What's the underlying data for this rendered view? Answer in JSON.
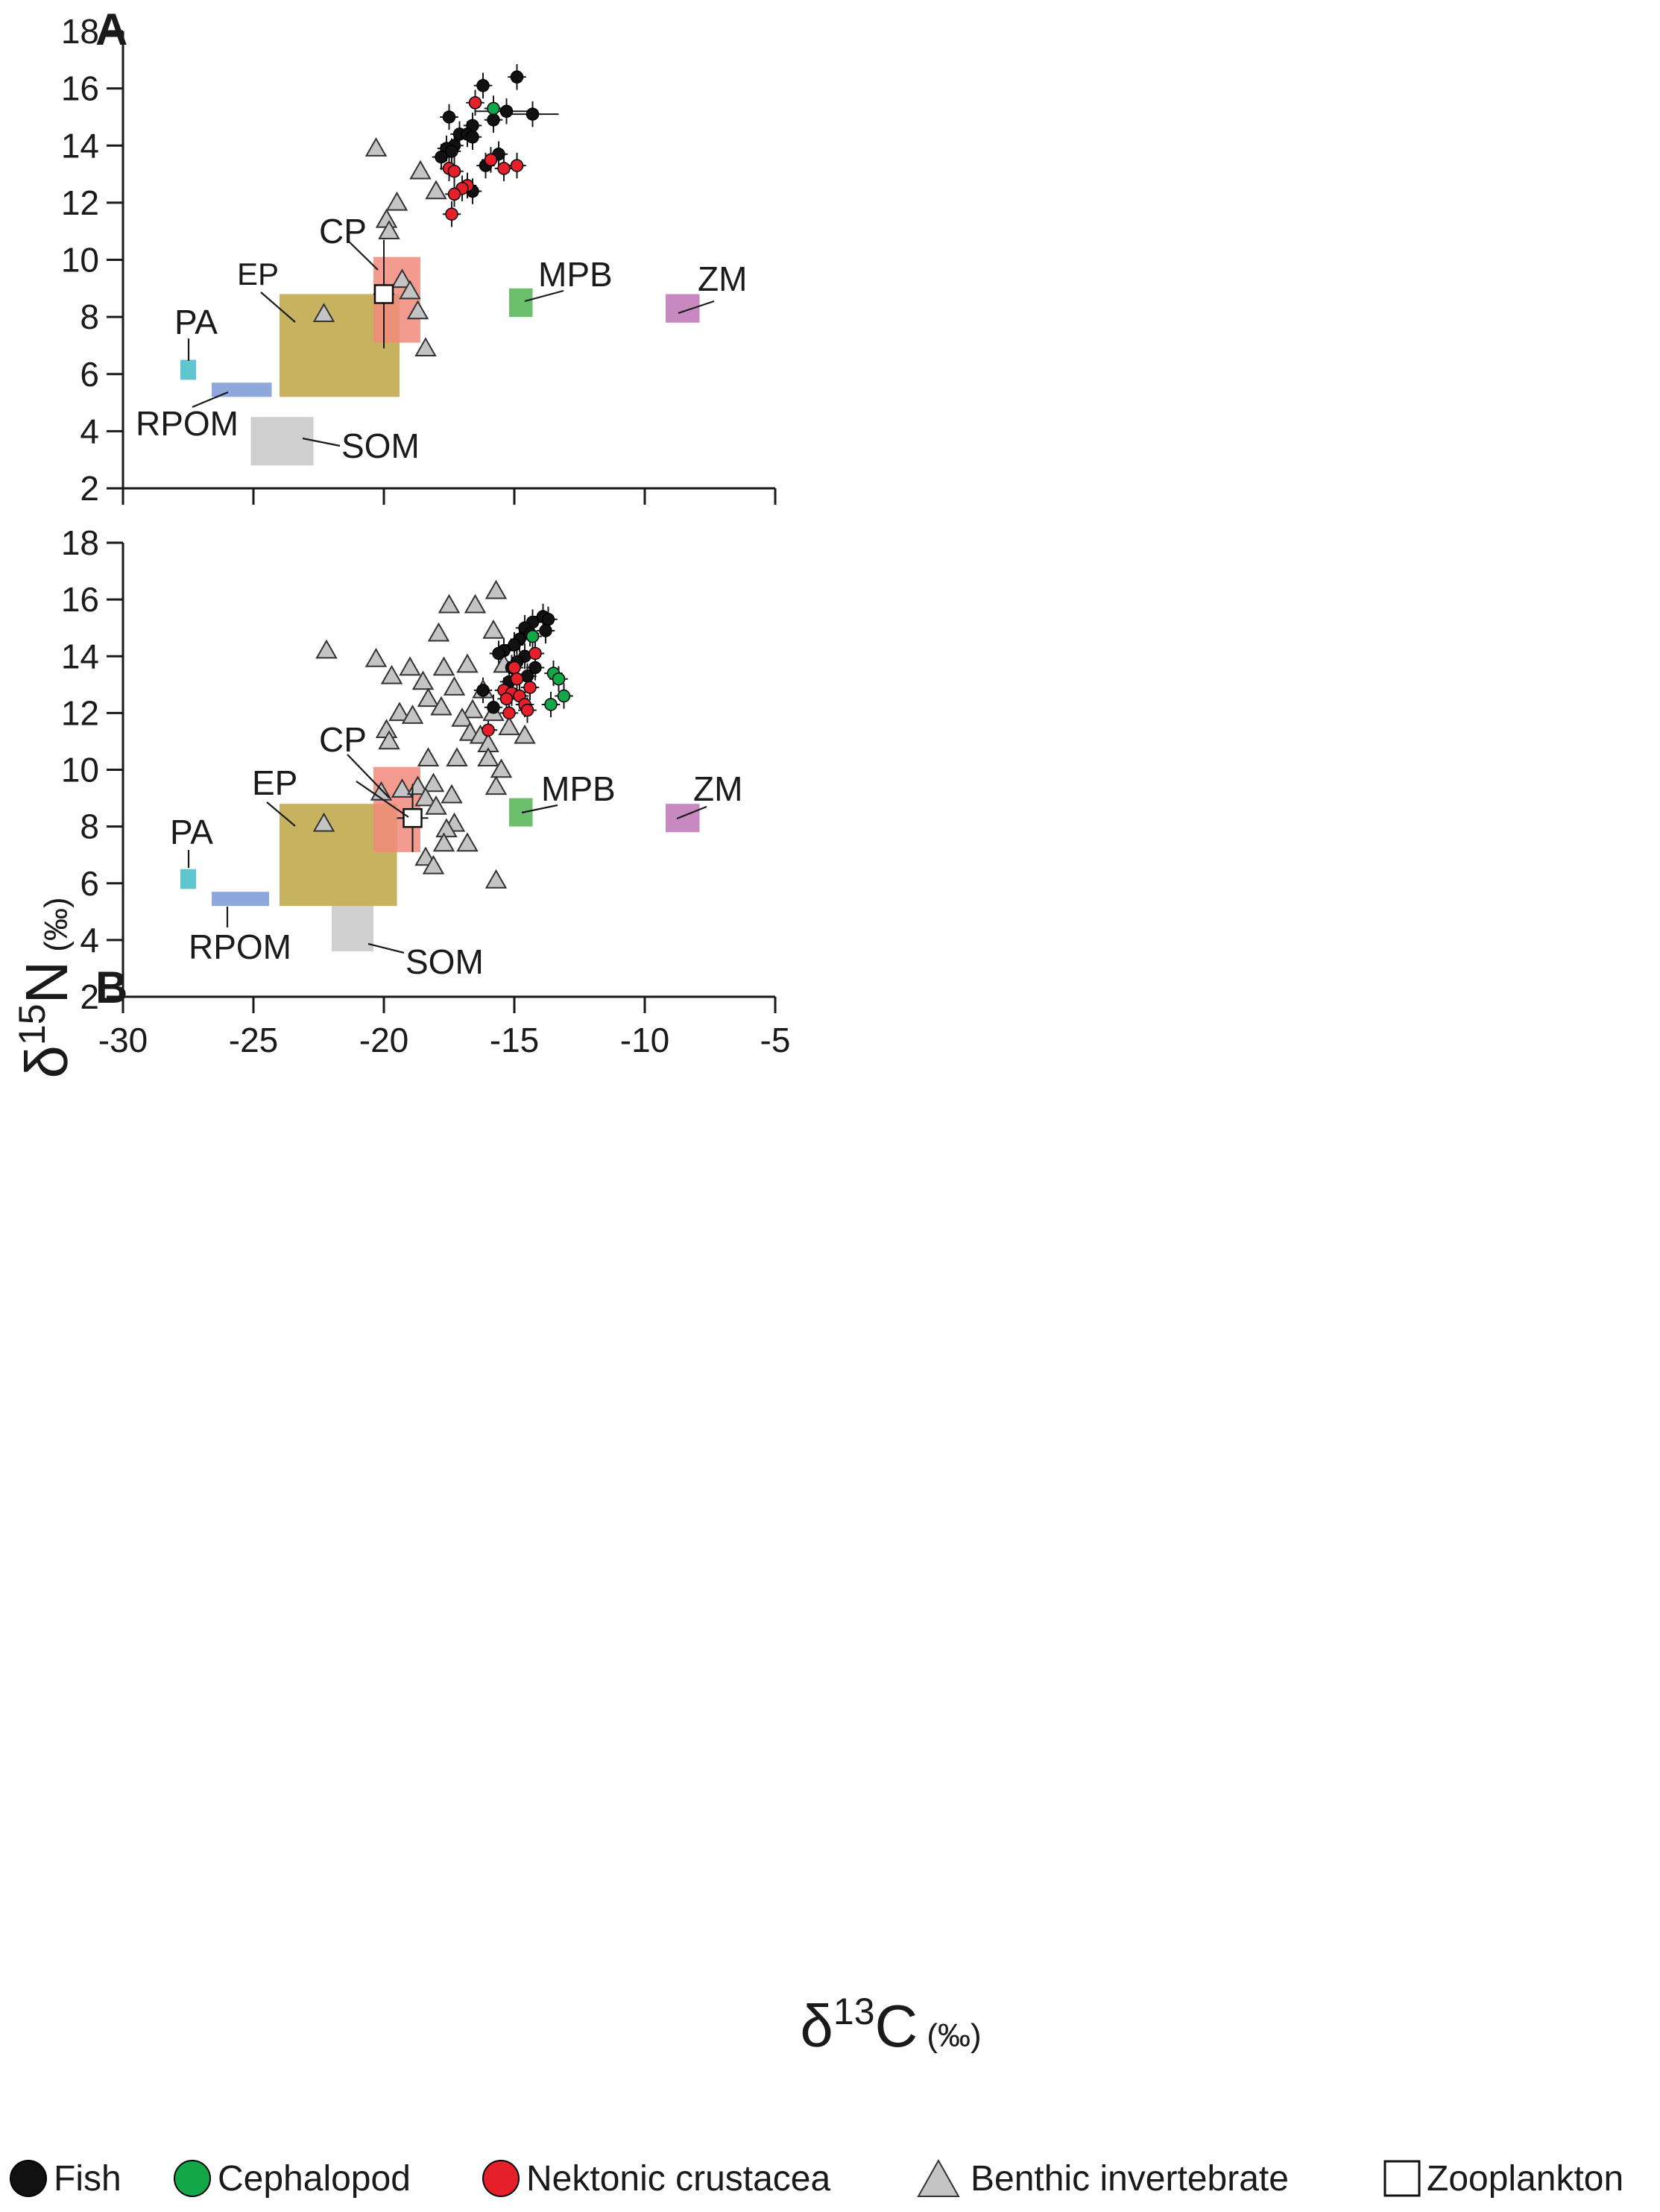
{
  "chart_data": [
    {
      "type": "scatter",
      "panel": "A",
      "xlim": [
        -30,
        -5
      ],
      "ylim": [
        2,
        18
      ],
      "xticks": [
        -30,
        -25,
        -20,
        -15,
        -10,
        -5
      ],
      "yticks": [
        2,
        4,
        6,
        8,
        10,
        12,
        14,
        16,
        18
      ],
      "sources": [
        {
          "label": "EP",
          "color": "#c6b25f",
          "x0": -24,
          "x1": -19.4,
          "y0": 5.2,
          "y1": 8.8
        },
        {
          "label": "CP",
          "color": "#f08a7a",
          "x0": -20.4,
          "x1": -18.6,
          "y0": 7.1,
          "y1": 10.1
        },
        {
          "label": "PA",
          "color": "#5fc6d0",
          "x0": -27.8,
          "x1": -27.2,
          "y0": 5.8,
          "y1": 6.5
        },
        {
          "label": "RPOM",
          "color": "#8ea8dc",
          "x0": -26.6,
          "x1": -24.3,
          "y0": 5.2,
          "y1": 5.7
        },
        {
          "label": "SOM",
          "color": "#cfcfcf",
          "x0": -25.1,
          "x1": -22.7,
          "y0": 2.8,
          "y1": 4.5
        },
        {
          "label": "MPB",
          "color": "#6cbf6c",
          "x0": -15.2,
          "x1": -14.3,
          "y0": 8.0,
          "y1": 9.0
        },
        {
          "label": "ZM",
          "color": "#c888c0",
          "x0": -9.2,
          "x1": -7.9,
          "y0": 7.8,
          "y1": 8.8
        }
      ],
      "zooplankton": [
        {
          "x": -20,
          "y": 8.8,
          "xerr": 0.4,
          "yerr": 1.9
        }
      ],
      "fish": [
        {
          "x": -14.9,
          "y": 16.4
        },
        {
          "x": -16.2,
          "y": 16.1
        },
        {
          "x": -15.3,
          "y": 15.2,
          "xerr": 1.2
        },
        {
          "x": -14.3,
          "y": 15.1,
          "xerr": 1.0
        },
        {
          "x": -17.5,
          "y": 15.0
        },
        {
          "x": -15.8,
          "y": 14.9
        },
        {
          "x": -16.6,
          "y": 14.7
        },
        {
          "x": -17.1,
          "y": 14.4
        },
        {
          "x": -16.8,
          "y": 14.4
        },
        {
          "x": -16.6,
          "y": 14.3
        },
        {
          "x": -17.3,
          "y": 14.0
        },
        {
          "x": -17.6,
          "y": 13.9
        },
        {
          "x": -17.4,
          "y": 13.8
        },
        {
          "x": -17.8,
          "y": 13.6
        },
        {
          "x": -15.6,
          "y": 13.7
        },
        {
          "x": -16.1,
          "y": 13.3
        },
        {
          "x": -16.6,
          "y": 12.4
        }
      ],
      "cephalopod": [
        {
          "x": -15.8,
          "y": 15.3
        }
      ],
      "nektonic_crustacea": [
        {
          "x": -16.5,
          "y": 15.5
        },
        {
          "x": -15.9,
          "y": 13.5
        },
        {
          "x": -15.4,
          "y": 13.2
        },
        {
          "x": -14.9,
          "y": 13.3
        },
        {
          "x": -17.5,
          "y": 13.2
        },
        {
          "x": -17.3,
          "y": 13.1
        },
        {
          "x": -16.8,
          "y": 12.6
        },
        {
          "x": -17.0,
          "y": 12.5
        },
        {
          "x": -17.3,
          "y": 12.3
        },
        {
          "x": -17.4,
          "y": 11.6
        }
      ],
      "benthic_invertebrate": [
        {
          "x": -20.3,
          "y": 13.9
        },
        {
          "x": -18.6,
          "y": 13.1
        },
        {
          "x": -18.0,
          "y": 12.4
        },
        {
          "x": -19.5,
          "y": 12.0
        },
        {
          "x": -19.9,
          "y": 11.4
        },
        {
          "x": -19.8,
          "y": 11.0
        },
        {
          "x": -19.3,
          "y": 9.3
        },
        {
          "x": -19.0,
          "y": 8.9
        },
        {
          "x": -18.7,
          "y": 8.2
        },
        {
          "x": -22.3,
          "y": 8.1
        },
        {
          "x": -18.4,
          "y": 6.9
        }
      ]
    },
    {
      "type": "scatter",
      "panel": "B",
      "xlim": [
        -30,
        -5
      ],
      "ylim": [
        2,
        18
      ],
      "xticks": [
        -30,
        -25,
        -20,
        -15,
        -10,
        -5
      ],
      "yticks": [
        2,
        4,
        6,
        8,
        10,
        12,
        14,
        16,
        18
      ],
      "sources": [
        {
          "label": "EP",
          "color": "#c6b25f",
          "x0": -24,
          "x1": -19.5,
          "y0": 5.2,
          "y1": 8.8
        },
        {
          "label": "CP",
          "color": "#f08a7a",
          "x0": -20.4,
          "x1": -18.6,
          "y0": 7.1,
          "y1": 10.1
        },
        {
          "label": "PA",
          "color": "#5fc6d0",
          "x0": -27.8,
          "x1": -27.2,
          "y0": 5.8,
          "y1": 6.5
        },
        {
          "label": "RPOM",
          "color": "#8ea8dc",
          "x0": -26.6,
          "x1": -24.4,
          "y0": 5.2,
          "y1": 5.7
        },
        {
          "label": "SOM",
          "color": "#cfcfcf",
          "x0": -22.0,
          "x1": -20.4,
          "y0": 3.6,
          "y1": 5.2
        },
        {
          "label": "MPB",
          "color": "#6cbf6c",
          "x0": -15.2,
          "x1": -14.3,
          "y0": 8.0,
          "y1": 9.0
        },
        {
          "label": "ZM",
          "color": "#c888c0",
          "x0": -9.2,
          "x1": -7.9,
          "y0": 7.8,
          "y1": 8.8
        }
      ],
      "zooplankton": [
        {
          "x": -18.9,
          "y": 8.3,
          "xerr": 0.6,
          "yerr": 1.2
        }
      ],
      "fish": [
        {
          "x": -13.9,
          "y": 15.4
        },
        {
          "x": -13.7,
          "y": 15.3
        },
        {
          "x": -14.3,
          "y": 15.2
        },
        {
          "x": -14.6,
          "y": 15.0
        },
        {
          "x": -14.4,
          "y": 14.8
        },
        {
          "x": -13.8,
          "y": 14.9
        },
        {
          "x": -14.8,
          "y": 14.6
        },
        {
          "x": -15.0,
          "y": 14.4
        },
        {
          "x": -15.4,
          "y": 14.2
        },
        {
          "x": -15.6,
          "y": 14.1
        },
        {
          "x": -14.6,
          "y": 14.0
        },
        {
          "x": -14.9,
          "y": 13.8
        },
        {
          "x": -15.1,
          "y": 13.6
        },
        {
          "x": -14.2,
          "y": 13.6
        },
        {
          "x": -14.5,
          "y": 13.3
        },
        {
          "x": -15.2,
          "y": 13.1
        },
        {
          "x": -16.2,
          "y": 12.8
        },
        {
          "x": -15.8,
          "y": 12.2
        }
      ],
      "cephalopod": [
        {
          "x": -14.3,
          "y": 14.7
        },
        {
          "x": -13.5,
          "y": 13.4
        },
        {
          "x": -13.3,
          "y": 13.2
        },
        {
          "x": -13.1,
          "y": 12.6
        },
        {
          "x": -13.6,
          "y": 12.3
        }
      ],
      "nektonic_crustacea": [
        {
          "x": -14.2,
          "y": 14.1
        },
        {
          "x": -15.0,
          "y": 13.6
        },
        {
          "x": -14.9,
          "y": 13.2
        },
        {
          "x": -15.4,
          "y": 12.8
        },
        {
          "x": -15.1,
          "y": 12.7
        },
        {
          "x": -14.8,
          "y": 12.6
        },
        {
          "x": -15.3,
          "y": 12.5
        },
        {
          "x": -14.4,
          "y": 12.9
        },
        {
          "x": -14.6,
          "y": 12.3
        },
        {
          "x": -15.2,
          "y": 12.0
        },
        {
          "x": -14.5,
          "y": 12.1
        },
        {
          "x": -16.0,
          "y": 11.4
        }
      ],
      "benthic_invertebrate": [
        {
          "x": -15.7,
          "y": 16.3
        },
        {
          "x": -16.5,
          "y": 15.8
        },
        {
          "x": -17.5,
          "y": 15.8
        },
        {
          "x": -15.8,
          "y": 14.9
        },
        {
          "x": -17.9,
          "y": 14.8
        },
        {
          "x": -22.2,
          "y": 14.2
        },
        {
          "x": -20.3,
          "y": 13.9
        },
        {
          "x": -19.0,
          "y": 13.6
        },
        {
          "x": -17.7,
          "y": 13.6
        },
        {
          "x": -16.8,
          "y": 13.7
        },
        {
          "x": -15.4,
          "y": 13.7
        },
        {
          "x": -19.7,
          "y": 13.3
        },
        {
          "x": -18.5,
          "y": 13.1
        },
        {
          "x": -17.3,
          "y": 12.9
        },
        {
          "x": -16.2,
          "y": 12.8
        },
        {
          "x": -18.3,
          "y": 12.5
        },
        {
          "x": -17.8,
          "y": 12.2
        },
        {
          "x": -16.6,
          "y": 12.1
        },
        {
          "x": -15.8,
          "y": 12.0
        },
        {
          "x": -19.4,
          "y": 12.0
        },
        {
          "x": -18.9,
          "y": 11.9
        },
        {
          "x": -17.0,
          "y": 11.8
        },
        {
          "x": -19.9,
          "y": 11.4
        },
        {
          "x": -16.7,
          "y": 11.3
        },
        {
          "x": -16.3,
          "y": 11.2
        },
        {
          "x": -15.2,
          "y": 11.5
        },
        {
          "x": -14.6,
          "y": 11.2
        },
        {
          "x": -19.8,
          "y": 11.0
        },
        {
          "x": -16.0,
          "y": 10.9
        },
        {
          "x": -18.3,
          "y": 10.4
        },
        {
          "x": -17.2,
          "y": 10.4
        },
        {
          "x": -16.0,
          "y": 10.4
        },
        {
          "x": -15.5,
          "y": 10.0
        },
        {
          "x": -19.3,
          "y": 9.3
        },
        {
          "x": -18.7,
          "y": 9.4
        },
        {
          "x": -18.1,
          "y": 9.5
        },
        {
          "x": -20.1,
          "y": 9.2
        },
        {
          "x": -17.4,
          "y": 9.1
        },
        {
          "x": -15.7,
          "y": 9.4
        },
        {
          "x": -18.4,
          "y": 9.0
        },
        {
          "x": -18.0,
          "y": 8.7
        },
        {
          "x": -17.3,
          "y": 8.1
        },
        {
          "x": -17.6,
          "y": 7.9
        },
        {
          "x": -22.3,
          "y": 8.1
        },
        {
          "x": -17.7,
          "y": 7.4
        },
        {
          "x": -16.8,
          "y": 7.4
        },
        {
          "x": -18.4,
          "y": 6.9
        },
        {
          "x": -18.1,
          "y": 6.6
        },
        {
          "x": -15.7,
          "y": 6.1
        }
      ]
    }
  ],
  "figure": {
    "panel_a_label": "A",
    "panel_b_label": "B",
    "y_axis_label": "δ15N (‰)",
    "y_axis_main": "δ",
    "y_axis_sup": "15",
    "y_axis_element": "N",
    "y_axis_unit": "(‰)",
    "x_axis_label": "δ13C (‰)",
    "x_axis_main": "δ",
    "x_axis_sup": "13",
    "x_axis_element": "C",
    "x_axis_unit": "(‰)"
  },
  "legend": {
    "fish": {
      "label": "Fish",
      "color": "#111111"
    },
    "cephalopod": {
      "label": "Cephalopod",
      "color": "#12a84a"
    },
    "nektonic_crustacea": {
      "label": "Nektonic crustacea",
      "color": "#e6202b"
    },
    "benthic_invertebrate": {
      "label": "Benthic invertebrate",
      "color": "#c4c4c4"
    },
    "zooplankton": {
      "label": "Zooplankton",
      "color": "#ffffff"
    }
  }
}
